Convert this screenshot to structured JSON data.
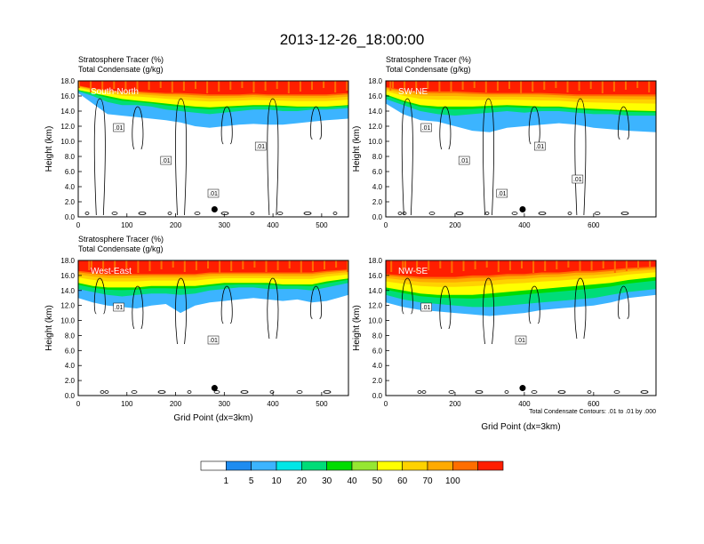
{
  "title": "2013-12-26_18:00:00",
  "colors": {
    "levels": [
      "#ffffff",
      "#1e8cf0",
      "#3cb4ff",
      "#00e6e6",
      "#00dc78",
      "#00dc00",
      "#96e632",
      "#ffff00",
      "#ffd200",
      "#ffaa00",
      "#ff6e00",
      "#ff1e00"
    ],
    "contour": "#000000"
  },
  "chart_data": [
    {
      "type": "heatmap",
      "header_line1": "Stratosphere Tracer   (%)",
      "header_line2": "Total Condensate   (g/kg)",
      "panel_label": "South-North",
      "ylabel": "Height (km)",
      "xlabel": "",
      "xlim": [
        0,
        555
      ],
      "ylim": [
        0,
        18
      ],
      "xticks": [
        0,
        100,
        200,
        300,
        400,
        500
      ],
      "yticks": [
        "0.0",
        "2.0",
        "4.0",
        "6.0",
        "8.0",
        "10.0",
        "12.0",
        "14.0",
        "16.0",
        "18.0"
      ],
      "contour_labels": [
        ".01",
        ".01",
        ".01",
        ".01"
      ],
      "profile": {
        "x": [
          0,
          30,
          60,
          90,
          120,
          150,
          180,
          210,
          240,
          270,
          300,
          330,
          360,
          390,
          420,
          450,
          480,
          510,
          555
        ],
        "level1": [
          16.4,
          15.0,
          13.6,
          13.4,
          13.2,
          13.0,
          12.8,
          12.5,
          12.0,
          11.8,
          12.0,
          12.2,
          12.3,
          12.2,
          12.2,
          12.4,
          12.6,
          12.8,
          13.0
        ],
        "level5": [
          16.6,
          16.0,
          15.2,
          14.8,
          14.8,
          14.6,
          14.2,
          14.0,
          13.8,
          13.6,
          13.8,
          14.0,
          14.2,
          14.2,
          14.0,
          14.0,
          14.2,
          14.2,
          14.4
        ],
        "level10": [
          16.8,
          16.4,
          16.0,
          15.6,
          15.4,
          15.2,
          15.0,
          14.8,
          14.6,
          14.5,
          14.6,
          14.7,
          14.8,
          14.8,
          14.7,
          14.6,
          14.6,
          14.6,
          14.8
        ],
        "level70": [
          17.4,
          17.0,
          16.8,
          16.6,
          16.6,
          16.5,
          16.4,
          16.4,
          16.3,
          16.2,
          16.2,
          16.2,
          16.3,
          16.2,
          16.2,
          16.2,
          16.2,
          16.2,
          16.4
        ]
      }
    },
    {
      "type": "heatmap",
      "header_line1": "Stratosphere Tracer   (%)",
      "header_line2": "Total Condensate   (g/kg)",
      "panel_label": "SW-NE",
      "ylabel": "Height (km)",
      "xlabel": "",
      "xlim": [
        0,
        780
      ],
      "ylim": [
        0,
        18
      ],
      "xticks": [
        0,
        200,
        400,
        600
      ],
      "yticks": [
        "0.0",
        "2.0",
        "4.0",
        "6.0",
        "8.0",
        "10.0",
        "12.0",
        "14.0",
        "16.0",
        "18.0"
      ],
      "contour_labels": [
        ".01",
        ".01",
        ".01",
        ".01",
        ".01"
      ],
      "profile": {
        "x": [
          0,
          50,
          100,
          150,
          200,
          250,
          300,
          350,
          400,
          450,
          500,
          550,
          600,
          650,
          700,
          780
        ],
        "level1": [
          15.0,
          13.6,
          12.8,
          12.6,
          12.0,
          11.4,
          11.2,
          11.8,
          12.0,
          12.2,
          12.4,
          12.2,
          11.8,
          11.6,
          11.4,
          11.2
        ],
        "level5": [
          15.6,
          14.8,
          14.0,
          13.6,
          13.4,
          13.6,
          13.8,
          14.0,
          13.8,
          14.0,
          14.0,
          13.8,
          13.6,
          13.6,
          13.4,
          13.4
        ],
        "level10": [
          16.2,
          15.4,
          14.8,
          14.6,
          14.6,
          14.6,
          14.7,
          14.8,
          14.7,
          14.6,
          14.6,
          14.4,
          14.3,
          14.2,
          14.1,
          14.0
        ],
        "level70": [
          17.2,
          16.8,
          16.6,
          16.6,
          16.6,
          16.5,
          16.4,
          16.4,
          16.4,
          16.4,
          16.3,
          16.2,
          16.2,
          16.2,
          16.2,
          16.2
        ]
      }
    },
    {
      "type": "heatmap",
      "header_line1": "Stratosphere Tracer   (%)",
      "header_line2": "Total Condensate   (g/kg)",
      "panel_label": "West-East",
      "ylabel": "Height (km)",
      "xlabel": "Grid Point (dx=3km)",
      "xlim": [
        0,
        555
      ],
      "ylim": [
        0,
        18
      ],
      "xticks": [
        0,
        100,
        200,
        300,
        400,
        500
      ],
      "yticks": [
        "0.0",
        "2.0",
        "4.0",
        "6.0",
        "8.0",
        "10.0",
        "12.0",
        "14.0",
        "16.0",
        "18.0"
      ],
      "contour_labels": [
        ".01",
        ".01"
      ],
      "profile": {
        "x": [
          0,
          30,
          60,
          90,
          120,
          150,
          180,
          210,
          240,
          270,
          300,
          330,
          360,
          390,
          420,
          450,
          480,
          510,
          555
        ],
        "level1": [
          13.0,
          12.4,
          12.0,
          11.8,
          11.6,
          12.0,
          12.2,
          11.0,
          12.0,
          12.4,
          12.6,
          12.8,
          13.0,
          12.8,
          12.6,
          12.8,
          12.4,
          12.6,
          13.4
        ],
        "level5": [
          14.2,
          13.8,
          13.4,
          13.2,
          13.4,
          13.6,
          13.6,
          13.4,
          13.6,
          14.0,
          14.2,
          14.4,
          14.4,
          14.2,
          14.2,
          14.2,
          14.0,
          14.4,
          15.0
        ],
        "level10": [
          15.0,
          14.6,
          14.4,
          14.4,
          14.4,
          14.6,
          14.6,
          14.6,
          14.6,
          14.8,
          15.0,
          15.0,
          15.0,
          15.0,
          14.8,
          14.8,
          14.8,
          15.2,
          15.6
        ],
        "level70": [
          16.6,
          16.4,
          16.2,
          16.2,
          16.2,
          16.2,
          16.2,
          16.2,
          16.2,
          16.4,
          16.4,
          16.4,
          16.4,
          16.4,
          16.4,
          16.4,
          16.4,
          16.6,
          16.8
        ]
      }
    },
    {
      "type": "heatmap",
      "header_line1": "",
      "header_line2": "",
      "panel_label": "NW-SE",
      "ylabel": "Height (km)",
      "xlabel": "Grid Point (dx=3km)",
      "xlim": [
        0,
        780
      ],
      "ylim": [
        0,
        18
      ],
      "xticks": [
        0,
        200,
        400,
        600
      ],
      "yticks": [
        "0.0",
        "2.0",
        "4.0",
        "6.0",
        "8.0",
        "10.0",
        "12.0",
        "14.0",
        "16.0",
        "18.0"
      ],
      "contour_labels": [
        ".01",
        ".01"
      ],
      "footnote": "Total Condensate Contours: .01 to .01 by .000",
      "profile": {
        "x": [
          0,
          50,
          100,
          150,
          200,
          250,
          300,
          350,
          400,
          450,
          500,
          550,
          600,
          650,
          700,
          780
        ],
        "level1": [
          12.4,
          11.8,
          11.4,
          11.2,
          11.0,
          10.8,
          10.6,
          10.8,
          11.0,
          11.4,
          11.6,
          11.8,
          12.0,
          12.4,
          13.0,
          13.4
        ],
        "level5": [
          13.4,
          12.8,
          12.4,
          12.2,
          12.0,
          11.8,
          11.8,
          12.0,
          12.2,
          12.4,
          12.6,
          12.8,
          13.0,
          13.4,
          13.8,
          14.2
        ],
        "level10": [
          14.4,
          14.0,
          13.6,
          13.4,
          13.4,
          13.4,
          13.6,
          13.8,
          14.0,
          14.2,
          14.4,
          14.6,
          14.8,
          15.0,
          15.4,
          15.8
        ],
        "level70": [
          16.2,
          16.0,
          15.8,
          15.8,
          15.8,
          16.0,
          16.0,
          16.2,
          16.2,
          16.4,
          16.4,
          16.6,
          16.6,
          16.8,
          17.0,
          17.2
        ]
      }
    }
  ],
  "colorbar": {
    "labels": [
      "1",
      "5",
      "10",
      "20",
      "30",
      "40",
      "50",
      "60",
      "70",
      "100"
    ],
    "colors": [
      "#ffffff",
      "#1e8cf0",
      "#3cb4ff",
      "#00e6e6",
      "#00dc78",
      "#00dc00",
      "#96e632",
      "#ffff00",
      "#ffd200",
      "#ffaa00",
      "#ff6e00",
      "#ff1e00"
    ]
  }
}
